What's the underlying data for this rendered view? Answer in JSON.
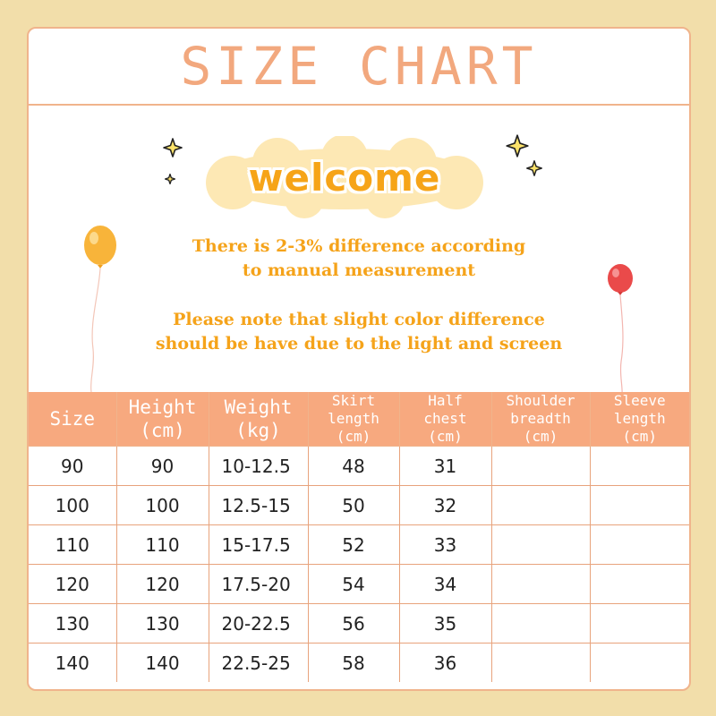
{
  "title": "SIZE CHART",
  "welcome": "welcome",
  "notes": [
    "There is 2-3% difference according",
    "to manual measurement",
    "Please note that slight color difference",
    "should be have due to the light and screen"
  ],
  "colors": {
    "background": "#f2deaa",
    "accent": "#f7a97f",
    "title": "#f2a87e",
    "note": "#f5a31a",
    "welcome": "#f6a418"
  },
  "icons": [
    "sparkle-star-icon",
    "yellow-balloon-icon",
    "red-balloon-icon",
    "cloud-shape"
  ],
  "table": {
    "headers": [
      [
        "Size"
      ],
      [
        "Height",
        "(cm)"
      ],
      [
        "Weight",
        "(kg)"
      ],
      [
        "Skirt",
        "length",
        "(cm)"
      ],
      [
        "Half",
        "chest",
        "(cm)"
      ],
      [
        "Shoulder",
        "breadth",
        "(cm)"
      ],
      [
        "Sleeve",
        "length",
        "(cm)"
      ]
    ],
    "rows": [
      [
        "90",
        "90",
        "10-12.5",
        "48",
        "31",
        "",
        ""
      ],
      [
        "100",
        "100",
        "12.5-15",
        "50",
        "32",
        "",
        ""
      ],
      [
        "110",
        "110",
        "15-17.5",
        "52",
        "33",
        "",
        ""
      ],
      [
        "120",
        "120",
        "17.5-20",
        "54",
        "34",
        "",
        ""
      ],
      [
        "130",
        "130",
        "20-22.5",
        "56",
        "35",
        "",
        ""
      ],
      [
        "140",
        "140",
        "22.5-25",
        "58",
        "36",
        "",
        ""
      ]
    ]
  }
}
